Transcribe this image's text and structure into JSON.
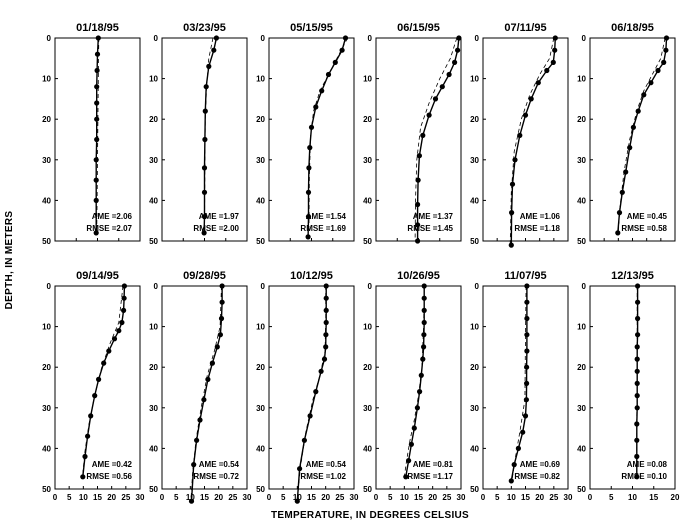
{
  "figure": {
    "ylabel": "DEPTH, IN METERS",
    "xlabel": "TEMPERATURE, IN DEGREES CELSIUS",
    "colors": {
      "ink": "#000000",
      "background": "#ffffff"
    }
  },
  "chart_data": [
    {
      "type": "line",
      "title": "01/18/95",
      "xlim": [
        0,
        20
      ],
      "ylim": [
        0,
        50
      ],
      "y_inverted": true,
      "xticks": [
        0,
        5,
        10,
        15,
        20
      ],
      "yticks": [
        0,
        10,
        20,
        30,
        40,
        50
      ],
      "annotations": [
        "AME =2.06",
        "RMSE =2.07"
      ],
      "series": [
        {
          "style": "solid-with-markers",
          "x": [
            10.2,
            10.0,
            9.9,
            9.8,
            9.8,
            9.8,
            9.8,
            9.7,
            9.7,
            9.7,
            9.7
          ],
          "y": [
            0,
            4,
            8,
            12,
            16,
            20,
            25,
            30,
            35,
            40,
            48
          ]
        },
        {
          "style": "dashed",
          "x": [
            10.3,
            10.2,
            10.1,
            10.0,
            9.9,
            9.8
          ],
          "y": [
            0,
            10,
            20,
            30,
            40,
            48
          ]
        }
      ]
    },
    {
      "type": "line",
      "title": "03/23/95",
      "xlim": [
        0,
        20
      ],
      "ylim": [
        0,
        50
      ],
      "y_inverted": true,
      "xticks": [
        0,
        5,
        10,
        15,
        20
      ],
      "yticks": [
        0,
        10,
        20,
        30,
        40,
        50
      ],
      "annotations": [
        "AME =1.97",
        "RMSE =2.00"
      ],
      "series": [
        {
          "style": "solid-with-markers",
          "x": [
            12.8,
            12.2,
            11.0,
            10.4,
            10.2,
            10.1,
            10.0,
            10.0,
            10.0,
            9.9
          ],
          "y": [
            0,
            3,
            7,
            12,
            18,
            25,
            32,
            38,
            44,
            48
          ]
        },
        {
          "style": "dashed",
          "x": [
            12.0,
            11.0,
            10.5,
            10.2,
            10.1,
            10.0
          ],
          "y": [
            0,
            5,
            12,
            20,
            30,
            48
          ]
        }
      ]
    },
    {
      "type": "line",
      "title": "05/15/95",
      "xlim": [
        0,
        20
      ],
      "ylim": [
        0,
        50
      ],
      "y_inverted": true,
      "xticks": [
        0,
        5,
        10,
        15,
        20
      ],
      "yticks": [
        0,
        10,
        20,
        30,
        40,
        50
      ],
      "annotations": [
        "AME =1.54",
        "RMSE =1.69"
      ],
      "series": [
        {
          "style": "solid-with-markers",
          "x": [
            18.0,
            17.2,
            15.6,
            14.0,
            12.4,
            11.0,
            10.0,
            9.6,
            9.4,
            9.3,
            9.3,
            9.2
          ],
          "y": [
            0,
            3,
            6,
            9,
            13,
            17,
            22,
            27,
            32,
            38,
            44,
            49
          ]
        },
        {
          "style": "dashed",
          "x": [
            18.5,
            16.5,
            14.5,
            12.0,
            10.5,
            9.8,
            9.5,
            9.4
          ],
          "y": [
            0,
            4,
            8,
            13,
            18,
            24,
            34,
            48
          ]
        }
      ]
    },
    {
      "type": "line",
      "title": "06/15/95",
      "xlim": [
        0,
        20
      ],
      "ylim": [
        0,
        50
      ],
      "y_inverted": true,
      "xticks": [
        0,
        5,
        10,
        15,
        20
      ],
      "yticks": [
        0,
        10,
        20,
        30,
        40,
        50
      ],
      "annotations": [
        "AME =1.37",
        "RMSE =1.45"
      ],
      "series": [
        {
          "style": "solid-with-markers",
          "x": [
            19.5,
            19.2,
            18.5,
            17.2,
            15.6,
            14.0,
            12.5,
            11.0,
            10.2,
            9.9,
            9.8,
            9.8,
            9.8
          ],
          "y": [
            0,
            3,
            6,
            9,
            12,
            15,
            19,
            24,
            29,
            35,
            41,
            46,
            50
          ]
        },
        {
          "style": "dashed",
          "x": [
            19.0,
            17.5,
            15.0,
            12.5,
            10.5,
            9.6,
            9.3,
            9.2
          ],
          "y": [
            0,
            5,
            10,
            16,
            22,
            30,
            40,
            50
          ]
        }
      ]
    },
    {
      "type": "line",
      "title": "07/11/95",
      "xlim": [
        0,
        30
      ],
      "ylim": [
        0,
        50
      ],
      "y_inverted": true,
      "xticks": [
        0,
        5,
        10,
        15,
        20,
        25,
        30
      ],
      "yticks": [
        0,
        10,
        20,
        30,
        40,
        50
      ],
      "annotations": [
        "AME =1.06",
        "RMSE =1.18"
      ],
      "series": [
        {
          "style": "solid-with-markers",
          "x": [
            25.5,
            25.3,
            24.8,
            22.5,
            19.5,
            17.0,
            15.0,
            13.0,
            11.3,
            10.4,
            10.1,
            10.0
          ],
          "y": [
            0,
            3,
            6,
            8,
            11,
            15,
            19,
            24,
            30,
            36,
            43,
            51
          ]
        },
        {
          "style": "dashed",
          "x": [
            25.0,
            23.5,
            20.0,
            16.5,
            13.5,
            11.0,
            10.0,
            9.6
          ],
          "y": [
            0,
            5,
            9,
            14,
            20,
            28,
            38,
            51
          ]
        }
      ]
    },
    {
      "type": "line",
      "title": "06/18/95",
      "xlim": [
        0,
        30
      ],
      "ylim": [
        0,
        50
      ],
      "y_inverted": true,
      "xticks": [
        0,
        5,
        10,
        15,
        20,
        25,
        30
      ],
      "yticks": [
        0,
        10,
        20,
        30,
        40,
        50
      ],
      "annotations": [
        "AME =0.45",
        "RMSE =0.58"
      ],
      "series": [
        {
          "style": "solid-with-markers",
          "x": [
            27.0,
            26.8,
            26.0,
            24.0,
            21.5,
            19.0,
            17.0,
            15.3,
            14.0,
            12.6,
            11.4,
            10.4,
            9.8
          ],
          "y": [
            0,
            3,
            6,
            8,
            11,
            14,
            18,
            22,
            27,
            33,
            38,
            43,
            48
          ]
        },
        {
          "style": "dashed",
          "x": [
            26.5,
            25.0,
            22.0,
            19.0,
            16.5,
            14.0,
            12.0,
            10.5,
            10.0
          ],
          "y": [
            0,
            5,
            9,
            13,
            18,
            25,
            33,
            42,
            48
          ]
        }
      ]
    },
    {
      "type": "line",
      "title": "09/14/95",
      "xlim": [
        0,
        30
      ],
      "ylim": [
        0,
        50
      ],
      "y_inverted": true,
      "xticks": [
        0,
        5,
        10,
        15,
        20,
        25,
        30
      ],
      "yticks": [
        0,
        10,
        20,
        30,
        40,
        50
      ],
      "annotations": [
        "AME =0.42",
        "RMSE =0.56"
      ],
      "series": [
        {
          "style": "solid-with-markers",
          "x": [
            24.5,
            24.4,
            24.2,
            23.6,
            22.5,
            21.0,
            19.0,
            17.2,
            15.4,
            14.0,
            12.6,
            11.5,
            10.6,
            9.8
          ],
          "y": [
            0,
            3,
            6,
            9,
            11,
            13,
            16,
            19,
            23,
            27,
            32,
            37,
            42,
            47
          ]
        },
        {
          "style": "dashed",
          "x": [
            24.0,
            22.5,
            19.5,
            16.5,
            14.0,
            12.0,
            10.5,
            9.7
          ],
          "y": [
            0,
            9,
            14,
            20,
            27,
            34,
            41,
            47
          ]
        }
      ]
    },
    {
      "type": "line",
      "title": "09/28/95",
      "xlim": [
        0,
        30
      ],
      "ylim": [
        0,
        50
      ],
      "y_inverted": true,
      "xticks": [
        0,
        5,
        10,
        15,
        20,
        25,
        30
      ],
      "yticks": [
        0,
        10,
        20,
        30,
        40,
        50
      ],
      "annotations": [
        "AME =0.54",
        "RMSE =0.72"
      ],
      "series": [
        {
          "style": "solid-with-markers",
          "x": [
            21.2,
            21.2,
            21.0,
            20.6,
            19.5,
            17.8,
            16.2,
            14.8,
            13.4,
            12.2,
            11.2,
            10.4
          ],
          "y": [
            0,
            4,
            8,
            12,
            15,
            19,
            23,
            28,
            33,
            38,
            44,
            53
          ]
        },
        {
          "style": "dashed",
          "x": [
            21.0,
            20.5,
            18.5,
            16.0,
            13.8,
            12.0,
            10.8,
            10.2
          ],
          "y": [
            0,
            10,
            16,
            22,
            30,
            38,
            46,
            53
          ]
        }
      ]
    },
    {
      "type": "line",
      "title": "10/12/95",
      "xlim": [
        0,
        30
      ],
      "ylim": [
        0,
        50
      ],
      "y_inverted": true,
      "xticks": [
        0,
        5,
        10,
        15,
        20,
        25,
        30
      ],
      "yticks": [
        0,
        10,
        20,
        30,
        40,
        50
      ],
      "annotations": [
        "AME =0.54",
        "RMSE =1.02"
      ],
      "series": [
        {
          "style": "solid-with-markers",
          "x": [
            20.2,
            20.2,
            20.2,
            20.2,
            20.1,
            20.0,
            19.6,
            18.4,
            16.5,
            14.5,
            12.5,
            10.8,
            10.0
          ],
          "y": [
            0,
            3,
            6,
            9,
            12,
            15,
            18,
            21,
            26,
            32,
            38,
            45,
            53
          ]
        },
        {
          "style": "dashed",
          "x": [
            20.0,
            20.0,
            19.8,
            18.0,
            15.5,
            13.0,
            11.0,
            10.0
          ],
          "y": [
            0,
            8,
            16,
            22,
            28,
            36,
            45,
            53
          ]
        }
      ]
    },
    {
      "type": "line",
      "title": "10/26/95",
      "xlim": [
        0,
        30
      ],
      "ylim": [
        0,
        50
      ],
      "y_inverted": true,
      "xticks": [
        0,
        5,
        10,
        15,
        20,
        25,
        30
      ],
      "yticks": [
        0,
        10,
        20,
        30,
        40,
        50
      ],
      "annotations": [
        "AME =0.81",
        "RMSE =1.17"
      ],
      "series": [
        {
          "style": "solid-with-markers",
          "x": [
            17.0,
            17.0,
            17.0,
            17.0,
            16.9,
            16.8,
            16.5,
            16.0,
            15.4,
            14.6,
            13.5,
            12.5,
            11.5,
            10.5
          ],
          "y": [
            0,
            3,
            6,
            9,
            12,
            15,
            18,
            22,
            26,
            30,
            35,
            39,
            43,
            47
          ]
        },
        {
          "style": "dashed",
          "x": [
            17.0,
            16.8,
            16.2,
            15.0,
            13.5,
            12.0,
            10.8,
            10.0
          ],
          "y": [
            0,
            10,
            20,
            27,
            33,
            38,
            43,
            47
          ]
        }
      ]
    },
    {
      "type": "line",
      "title": "11/07/95",
      "xlim": [
        0,
        30
      ],
      "ylim": [
        0,
        50
      ],
      "y_inverted": true,
      "xticks": [
        0,
        5,
        10,
        15,
        20,
        25,
        30
      ],
      "yticks": [
        0,
        10,
        20,
        30,
        40,
        50
      ],
      "annotations": [
        "AME =0.69",
        "RMSE =0.82"
      ],
      "series": [
        {
          "style": "solid-with-markers",
          "x": [
            15.5,
            15.5,
            15.5,
            15.5,
            15.5,
            15.4,
            15.4,
            15.3,
            15.0,
            14.0,
            12.5,
            11.0,
            10.0
          ],
          "y": [
            0,
            4,
            8,
            12,
            16,
            20,
            24,
            28,
            32,
            36,
            40,
            44,
            48
          ]
        },
        {
          "style": "dashed",
          "x": [
            15.2,
            15.0,
            14.8,
            13.0,
            11.5,
            10.2
          ],
          "y": [
            0,
            12,
            28,
            36,
            42,
            48
          ]
        }
      ]
    },
    {
      "type": "line",
      "title": "12/13/95",
      "xlim": [
        0,
        20
      ],
      "ylim": [
        0,
        50
      ],
      "y_inverted": true,
      "xticks": [
        0,
        5,
        10,
        15,
        20
      ],
      "yticks": [
        0,
        10,
        20,
        30,
        40,
        50
      ],
      "annotations": [
        "AME =0.08",
        "RMSE =0.10"
      ],
      "series": [
        {
          "style": "solid-with-markers",
          "x": [
            11.2,
            11.2,
            11.2,
            11.2,
            11.1,
            11.1,
            11.1,
            11.1,
            11.1,
            11.1,
            11.0,
            11.0,
            11.0,
            11.0
          ],
          "y": [
            0,
            4,
            8,
            12,
            15,
            18,
            21,
            24,
            27,
            30,
            34,
            38,
            42,
            47
          ]
        },
        {
          "style": "dashed",
          "x": [
            11.1,
            11.1,
            11.0,
            11.0
          ],
          "y": [
            0,
            16,
            32,
            47
          ]
        }
      ]
    }
  ]
}
